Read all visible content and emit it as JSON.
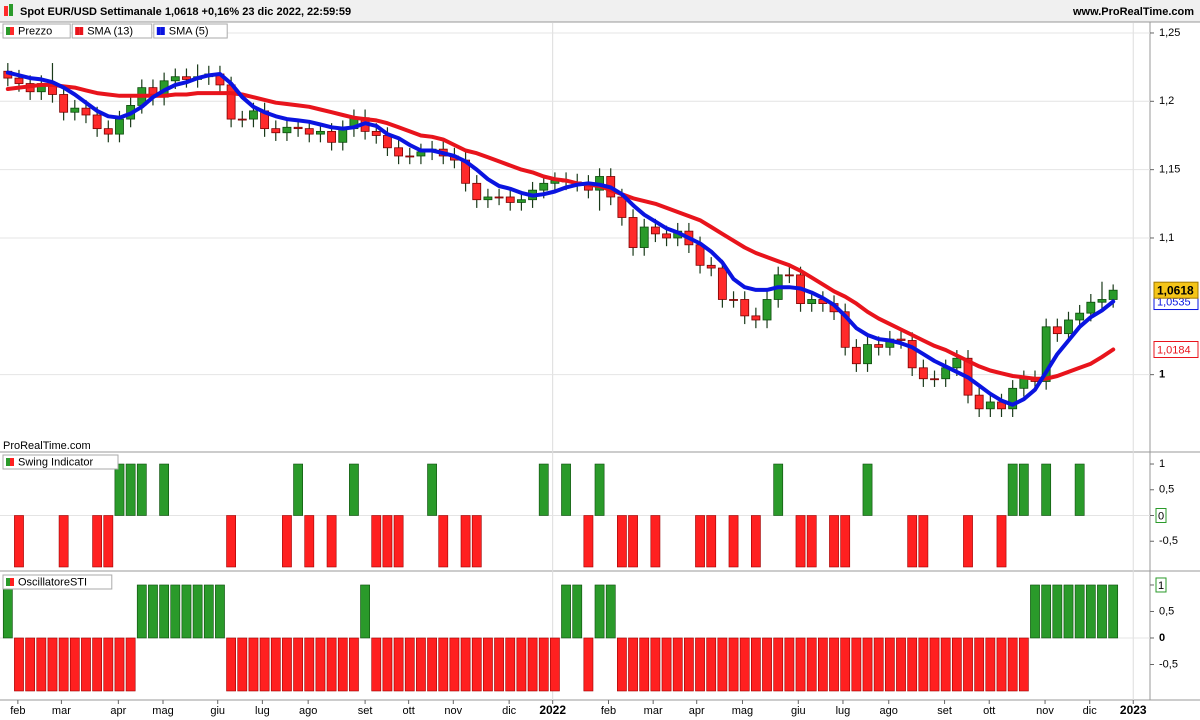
{
  "header": {
    "title": "Spot EUR/USD Settimanale 1,0618 +0,16% 23 dic 2022, 22:59:59",
    "website": "www.ProRealTime.com"
  },
  "chart_data": [
    {
      "type": "candlestick",
      "name": "Prezzo",
      "watermark": "ProRealTime.com",
      "up_color": "#2a9a2a",
      "down_color": "#ff2a2a",
      "last_label": "1,0618",
      "open": [
        1.222,
        1.217,
        1.213,
        1.207,
        1.213,
        1.205,
        1.192,
        1.195,
        1.19,
        1.18,
        1.176,
        1.187,
        1.197,
        1.21,
        1.203,
        1.215,
        1.218,
        1.216,
        1.218,
        1.22,
        1.212,
        1.187,
        1.187,
        1.193,
        1.18,
        1.177,
        1.181,
        1.18,
        1.176,
        1.178,
        1.17,
        1.18,
        1.188,
        1.178,
        1.175,
        1.166,
        1.16,
        1.16,
        1.163,
        1.165,
        1.16,
        1.157,
        1.14,
        1.128,
        1.13,
        1.13,
        1.126,
        1.128,
        1.135,
        1.14,
        1.142,
        1.141,
        1.14,
        1.135,
        1.145,
        1.13,
        1.115,
        1.093,
        1.108,
        1.103,
        1.1,
        1.105,
        1.095,
        1.08,
        1.078,
        1.055,
        1.055,
        1.043,
        1.04,
        1.055,
        1.073,
        1.073,
        1.052,
        1.055,
        1.052,
        1.046,
        1.02,
        1.008,
        1.022,
        1.02,
        1.026,
        1.025,
        1.005,
        0.997,
        0.997,
        1.005,
        1.012,
        0.985,
        0.975,
        0.98,
        0.975,
        0.99,
        0.997,
        0.995,
        1.035,
        1.03,
        1.04,
        1.045,
        1.053,
        1.055
      ],
      "high": [
        1.228,
        1.223,
        1.219,
        1.219,
        1.228,
        1.211,
        1.201,
        1.201,
        1.196,
        1.186,
        1.193,
        1.203,
        1.216,
        1.216,
        1.221,
        1.224,
        1.224,
        1.227,
        1.226,
        1.226,
        1.218,
        1.193,
        1.199,
        1.199,
        1.186,
        1.187,
        1.187,
        1.186,
        1.184,
        1.184,
        1.186,
        1.194,
        1.194,
        1.184,
        1.181,
        1.172,
        1.166,
        1.169,
        1.171,
        1.171,
        1.166,
        1.163,
        1.146,
        1.136,
        1.136,
        1.136,
        1.134,
        1.141,
        1.146,
        1.148,
        1.148,
        1.147,
        1.146,
        1.151,
        1.151,
        1.136,
        1.121,
        1.114,
        1.114,
        1.109,
        1.111,
        1.111,
        1.101,
        1.086,
        1.084,
        1.061,
        1.061,
        1.049,
        1.061,
        1.079,
        1.079,
        1.079,
        1.061,
        1.061,
        1.058,
        1.052,
        1.026,
        1.028,
        1.028,
        1.032,
        1.032,
        1.031,
        1.011,
        1.003,
        1.011,
        1.018,
        1.018,
        0.991,
        0.986,
        0.986,
        0.996,
        1.003,
        1.003,
        1.041,
        1.041,
        1.046,
        1.051,
        1.059,
        1.068,
        1.066
      ],
      "low": [
        1.211,
        1.207,
        1.201,
        1.201,
        1.199,
        1.186,
        1.186,
        1.184,
        1.174,
        1.17,
        1.17,
        1.181,
        1.191,
        1.197,
        1.197,
        1.209,
        1.21,
        1.21,
        1.212,
        1.206,
        1.181,
        1.181,
        1.181,
        1.174,
        1.171,
        1.171,
        1.174,
        1.17,
        1.17,
        1.164,
        1.164,
        1.174,
        1.172,
        1.169,
        1.16,
        1.154,
        1.154,
        1.154,
        1.157,
        1.154,
        1.151,
        1.134,
        1.122,
        1.122,
        1.124,
        1.12,
        1.12,
        1.122,
        1.129,
        1.134,
        1.135,
        1.134,
        1.129,
        1.12,
        1.124,
        1.109,
        1.087,
        1.087,
        1.097,
        1.094,
        1.094,
        1.089,
        1.074,
        1.072,
        1.049,
        1.049,
        1.037,
        1.034,
        1.034,
        1.049,
        1.067,
        1.046,
        1.046,
        1.046,
        1.04,
        1.014,
        1.002,
        1.002,
        1.014,
        1.014,
        1.019,
        0.999,
        0.991,
        0.991,
        0.991,
        0.999,
        0.979,
        0.969,
        0.969,
        0.969,
        0.969,
        0.984,
        0.989,
        0.989,
        1.024,
        1.024,
        1.034,
        1.039,
        1.047,
        1.049
      ],
      "close": [
        1.217,
        1.213,
        1.207,
        1.213,
        1.205,
        1.192,
        1.195,
        1.19,
        1.18,
        1.176,
        1.187,
        1.197,
        1.21,
        1.203,
        1.215,
        1.218,
        1.216,
        1.218,
        1.22,
        1.212,
        1.187,
        1.187,
        1.193,
        1.18,
        1.177,
        1.181,
        1.18,
        1.176,
        1.178,
        1.17,
        1.18,
        1.188,
        1.178,
        1.175,
        1.166,
        1.16,
        1.16,
        1.163,
        1.165,
        1.16,
        1.157,
        1.14,
        1.128,
        1.13,
        1.13,
        1.126,
        1.128,
        1.135,
        1.14,
        1.142,
        1.141,
        1.14,
        1.135,
        1.145,
        1.13,
        1.115,
        1.093,
        1.108,
        1.103,
        1.1,
        1.105,
        1.095,
        1.08,
        1.078,
        1.055,
        1.055,
        1.043,
        1.04,
        1.055,
        1.073,
        1.073,
        1.052,
        1.055,
        1.052,
        1.046,
        1.02,
        1.008,
        1.022,
        1.02,
        1.026,
        1.025,
        1.005,
        0.997,
        0.997,
        1.005,
        1.012,
        0.985,
        0.975,
        0.98,
        0.975,
        0.99,
        0.997,
        0.995,
        1.035,
        1.03,
        1.04,
        1.045,
        1.053,
        1.055,
        1.0618
      ],
      "series": [
        {
          "name": "SMA (13)",
          "color": "#e8141c",
          "last_label": "1,0184",
          "values": [
            1.209,
            1.21,
            1.211,
            1.212,
            1.212,
            1.211,
            1.21,
            1.208,
            1.206,
            1.205,
            1.204,
            1.204,
            1.204,
            1.204,
            1.204,
            1.205,
            1.205,
            1.206,
            1.206,
            1.206,
            1.206,
            1.205,
            1.203,
            1.201,
            1.199,
            1.198,
            1.197,
            1.196,
            1.194,
            1.192,
            1.19,
            1.188,
            1.187,
            1.186,
            1.184,
            1.181,
            1.178,
            1.175,
            1.174,
            1.172,
            1.168,
            1.164,
            1.162,
            1.159,
            1.156,
            1.153,
            1.15,
            1.148,
            1.145,
            1.143,
            1.142,
            1.14,
            1.139,
            1.138,
            1.135,
            1.132,
            1.129,
            1.127,
            1.125,
            1.122,
            1.119,
            1.116,
            1.113,
            1.108,
            1.103,
            1.098,
            1.093,
            1.089,
            1.086,
            1.083,
            1.08,
            1.076,
            1.071,
            1.066,
            1.061,
            1.057,
            1.052,
            1.046,
            1.041,
            1.037,
            1.033,
            1.029,
            1.025,
            1.021,
            1.018,
            1.014,
            1.01,
            1.006,
            1.003,
            1.001,
            0.999,
            0.998,
            0.997,
            0.997,
            0.999,
            1.002,
            1.005,
            1.008,
            1.013,
            1.0184
          ]
        },
        {
          "name": "SMA (5)",
          "color": "#0a14e0",
          "last_label": "1,0535",
          "values": [
            1.221,
            1.219,
            1.217,
            1.216,
            1.214,
            1.21,
            1.205,
            1.199,
            1.193,
            1.189,
            1.188,
            1.191,
            1.196,
            1.203,
            1.208,
            1.212,
            1.214,
            1.217,
            1.219,
            1.22,
            1.213,
            1.203,
            1.196,
            1.192,
            1.189,
            1.187,
            1.186,
            1.185,
            1.183,
            1.181,
            1.18,
            1.181,
            1.184,
            1.182,
            1.176,
            1.173,
            1.168,
            1.164,
            1.164,
            1.162,
            1.16,
            1.156,
            1.15,
            1.143,
            1.138,
            1.136,
            1.133,
            1.131,
            1.132,
            1.134,
            1.137,
            1.139,
            1.14,
            1.139,
            1.137,
            1.132,
            1.124,
            1.117,
            1.112,
            1.107,
            1.104,
            1.1,
            1.096,
            1.09,
            1.082,
            1.07,
            1.064,
            1.062,
            1.062,
            1.064,
            1.064,
            1.063,
            1.06,
            1.056,
            1.051,
            1.043,
            1.034,
            1.029,
            1.026,
            1.025,
            1.023,
            1.02,
            1.015,
            1.01,
            1.006,
            1.002,
            0.998,
            0.992,
            0.986,
            0.981,
            0.978,
            0.982,
            0.989,
            1.002,
            1.015,
            1.025,
            1.035,
            1.042,
            1.047,
            1.0535
          ]
        }
      ],
      "ylim": [
        0.9434,
        1.2573
      ],
      "yticks": [
        {
          "value": 1.25,
          "label": "1,25"
        },
        {
          "value": 1.2,
          "label": "1,2"
        },
        {
          "value": 1.15,
          "label": "1,15"
        },
        {
          "value": 1.1,
          "label": "1,1"
        },
        1
      ],
      "grid": true
    },
    {
      "type": "bar",
      "title": "Swing Indicator",
      "up_color": "#2a9a2a",
      "down_color": "#ff2020",
      "values": [
        0,
        -1,
        0,
        0,
        0,
        -1,
        0,
        0,
        -1,
        -1,
        1,
        1,
        1,
        0,
        1,
        0,
        0,
        0,
        0,
        0,
        -1,
        0,
        0,
        0,
        0,
        -1,
        1,
        -1,
        0,
        -1,
        0,
        1,
        0,
        -1,
        -1,
        -1,
        0,
        0,
        1,
        -1,
        0,
        -1,
        -1,
        0,
        0,
        0,
        0,
        0,
        1,
        0,
        1,
        0,
        -1,
        1,
        0,
        -1,
        -1,
        0,
        -1,
        0,
        0,
        0,
        -1,
        -1,
        0,
        -1,
        0,
        -1,
        0,
        1,
        0,
        -1,
        -1,
        0,
        -1,
        -1,
        0,
        1,
        0,
        0,
        0,
        -1,
        -1,
        0,
        0,
        0,
        -1,
        0,
        0,
        -1,
        1,
        1,
        0,
        1,
        0,
        0,
        1,
        0,
        0,
        0
      ],
      "ylim": [
        -1.078,
        1.214
      ],
      "yticks": [
        1,
        {
          "value": 0.5,
          "label": "0,5"
        },
        0,
        {
          "value": -0.5,
          "label": "-0,5"
        }
      ]
    },
    {
      "type": "bar",
      "title": "OscillatoreSTI",
      "up_color": "#2a9a2a",
      "down_color": "#ff2020",
      "values": [
        1,
        -1,
        -1,
        -1,
        -1,
        -1,
        -1,
        -1,
        -1,
        -1,
        -1,
        -1,
        1,
        1,
        1,
        1,
        1,
        1,
        1,
        1,
        -1,
        -1,
        -1,
        -1,
        -1,
        -1,
        -1,
        -1,
        -1,
        -1,
        -1,
        -1,
        1,
        -1,
        -1,
        -1,
        -1,
        -1,
        -1,
        -1,
        -1,
        -1,
        -1,
        -1,
        -1,
        -1,
        -1,
        -1,
        -1,
        -1,
        1,
        1,
        -1,
        1,
        1,
        -1,
        -1,
        -1,
        -1,
        -1,
        -1,
        -1,
        -1,
        -1,
        -1,
        -1,
        -1,
        -1,
        -1,
        -1,
        -1,
        -1,
        -1,
        -1,
        -1,
        -1,
        -1,
        -1,
        -1,
        -1,
        -1,
        -1,
        -1,
        -1,
        -1,
        -1,
        -1,
        -1,
        -1,
        -1,
        -1,
        -1,
        1,
        1,
        1,
        1,
        1,
        1,
        1,
        1
      ],
      "ylim": [
        -1.17,
        1.226
      ],
      "yticks": [
        1,
        {
          "value": 0.5,
          "label": "0,5"
        },
        0,
        {
          "value": -0.5,
          "label": "-0,5"
        }
      ],
      "xlim": [
        -0.7,
        102.3
      ],
      "xticks": [
        {
          "value": 0.9,
          "label": "feb"
        },
        {
          "value": 4.8,
          "label": "mar"
        },
        {
          "value": 9.9,
          "label": "apr"
        },
        {
          "value": 13.9,
          "label": "mag"
        },
        {
          "value": 18.8,
          "label": "giu"
        },
        {
          "value": 22.8,
          "label": "lug"
        },
        {
          "value": 26.9,
          "label": "ago"
        },
        {
          "value": 32,
          "label": "set"
        },
        {
          "value": 35.9,
          "label": "ott"
        },
        {
          "value": 39.9,
          "label": "nov"
        },
        {
          "value": 44.9,
          "label": "dic"
        },
        {
          "value": 48.8,
          "label": "2022"
        },
        {
          "value": 53.8,
          "label": "feb"
        },
        {
          "value": 57.8,
          "label": "mar"
        },
        {
          "value": 61.7,
          "label": "apr"
        },
        {
          "value": 65.8,
          "label": "mag"
        },
        {
          "value": 70.8,
          "label": "giu"
        },
        {
          "value": 74.8,
          "label": "lug"
        },
        {
          "value": 78.9,
          "label": "ago"
        },
        {
          "value": 83.9,
          "label": "set"
        },
        {
          "value": 87.9,
          "label": "ott"
        },
        {
          "value": 92.9,
          "label": "nov"
        },
        {
          "value": 96.9,
          "label": "dic"
        },
        {
          "value": 100.8,
          "label": "2023"
        }
      ]
    }
  ]
}
